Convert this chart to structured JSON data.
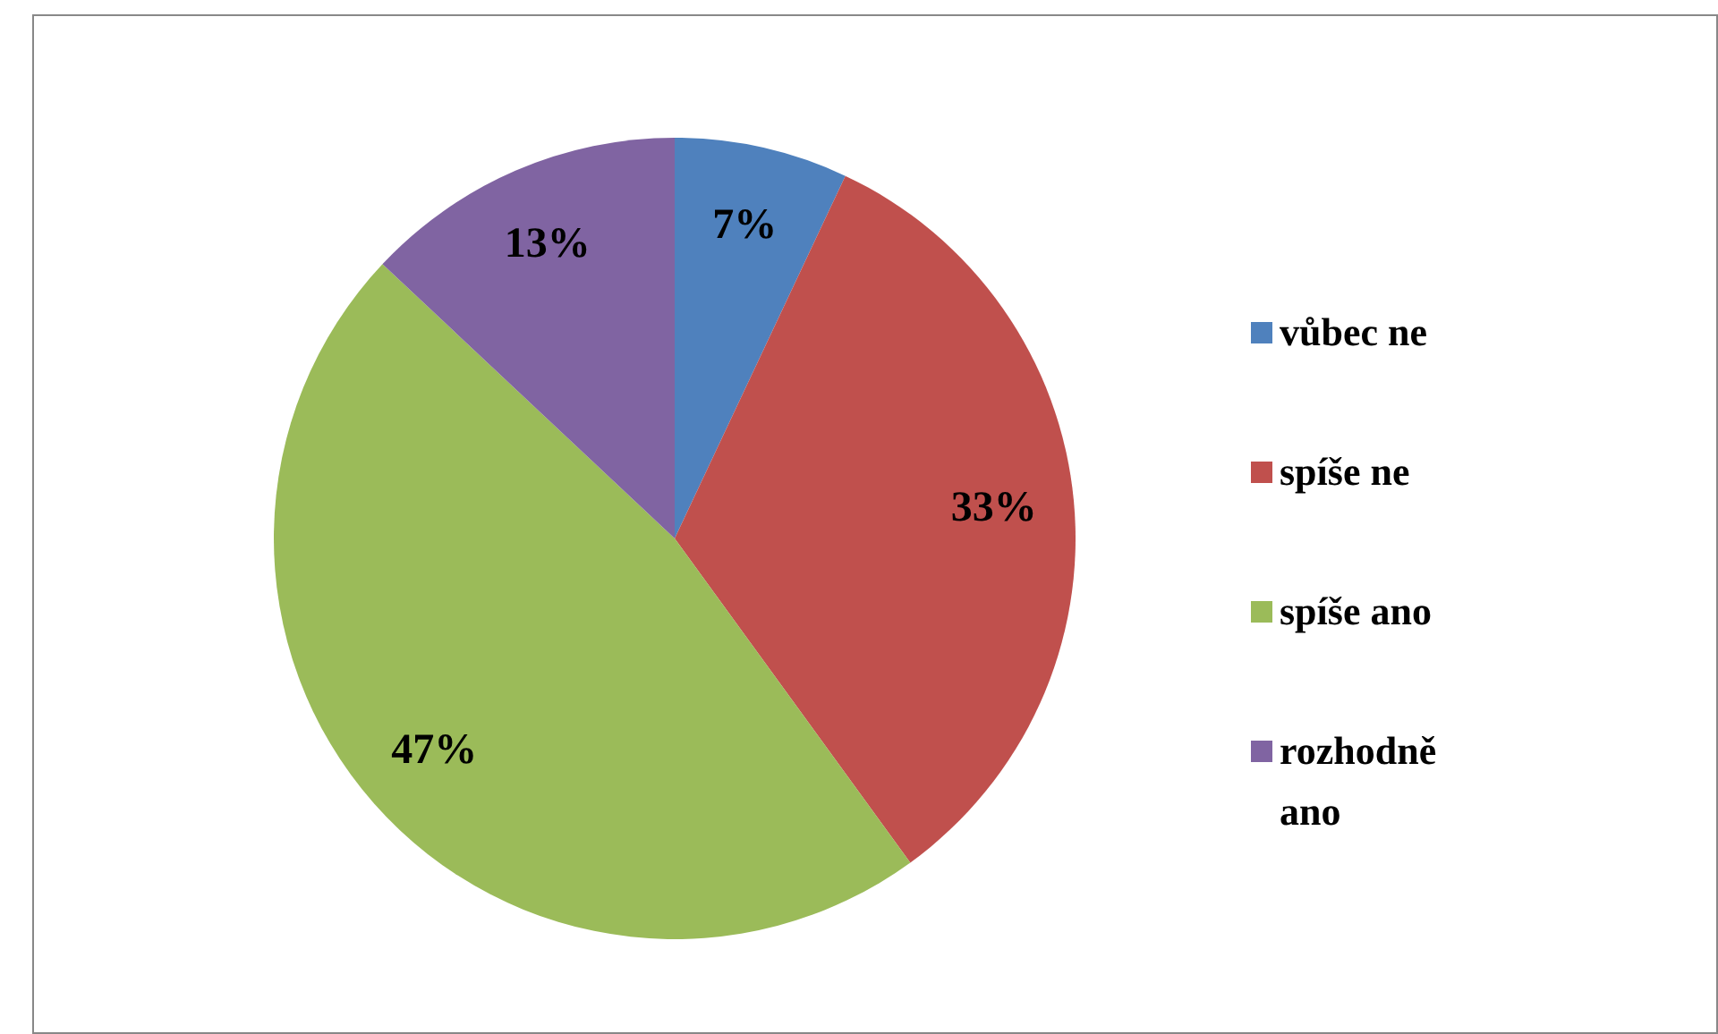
{
  "chart_data": {
    "type": "pie",
    "categories": [
      "vůbec ne",
      "spíše ne",
      "spíše ano",
      "rozhodně ano"
    ],
    "values": [
      7,
      33,
      47,
      13
    ],
    "colors": [
      "#4f81bd",
      "#c0504d",
      "#9bbb59",
      "#8064a2"
    ],
    "value_labels": [
      "7%",
      "33%",
      "47%",
      "13%"
    ],
    "legend": "right"
  }
}
